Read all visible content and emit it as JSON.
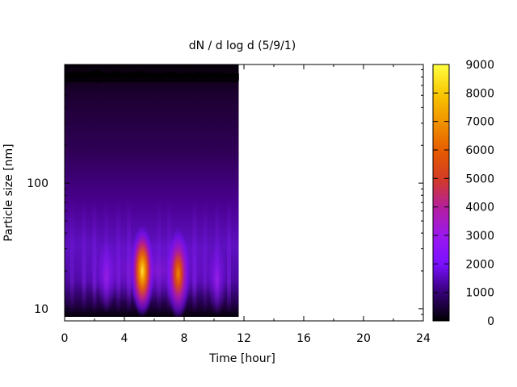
{
  "chart_data": {
    "type": "heatmap",
    "title": "dN / d log d (5/9/1)",
    "xlabel": "Time [hour]",
    "ylabel": "Particle size [nm]",
    "xlim": [
      0,
      24
    ],
    "ylim": [
      8,
      880
    ],
    "yscale": "log",
    "x_ticks": [
      0,
      4,
      8,
      12,
      16,
      20,
      24
    ],
    "y_ticks": [
      10,
      100
    ],
    "data_time_range": [
      0,
      11.65
    ],
    "colorbar": {
      "range": [
        0,
        9000
      ],
      "ticks": [
        0,
        1000,
        2000,
        3000,
        4000,
        5000,
        6000,
        7000,
        8000,
        9000
      ],
      "colormap": [
        "#000000",
        "#5a00a8",
        "#8a1fff",
        "#a020c8",
        "#d23c1e",
        "#f08c00",
        "#ffd600",
        "#ffff33"
      ]
    },
    "features": [
      {
        "time": 5.2,
        "size_nm": 20,
        "value": 8000
      },
      {
        "time": 7.6,
        "size_nm": 19,
        "value": 6500
      },
      {
        "time": 2.8,
        "size_nm": 18,
        "value": 2500
      },
      {
        "time": 10.2,
        "size_nm": 17,
        "value": 2300
      }
    ]
  }
}
